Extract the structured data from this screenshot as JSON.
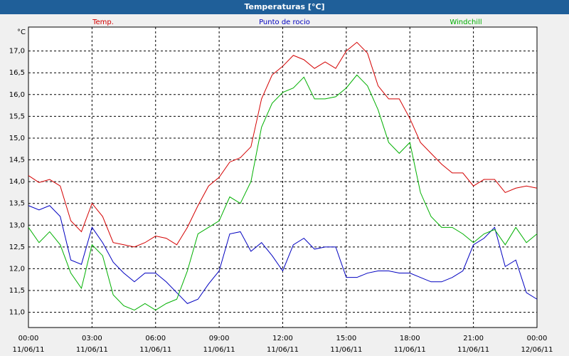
{
  "chart_data": {
    "type": "line",
    "title": "Temperaturas [°C]",
    "y_unit": "°C",
    "x": [
      0,
      0.5,
      1,
      1.5,
      2,
      2.5,
      3,
      3.5,
      4,
      4.5,
      5,
      5.5,
      6,
      6.5,
      7,
      7.5,
      8,
      8.5,
      9,
      9.5,
      10,
      10.5,
      11,
      11.5,
      12,
      12.5,
      13,
      13.5,
      14,
      14.5,
      15,
      15.5,
      16,
      16.5,
      17,
      17.5,
      18,
      18.5,
      19,
      19.5,
      20,
      20.5,
      21,
      21.5,
      22,
      22.5,
      23,
      23.5,
      24
    ],
    "series": [
      {
        "name": "Temp.",
        "color": "#d40000",
        "values": [
          14.14,
          13.98,
          14.05,
          13.9,
          13.1,
          12.85,
          13.5,
          13.2,
          12.6,
          12.55,
          12.5,
          12.6,
          12.75,
          12.7,
          12.55,
          12.95,
          13.45,
          13.9,
          14.1,
          14.45,
          14.55,
          14.8,
          15.9,
          16.45,
          16.65,
          16.9,
          16.8,
          16.6,
          16.75,
          16.6,
          17.0,
          17.2,
          16.95,
          16.2,
          15.9,
          15.9,
          15.45,
          14.9,
          14.65,
          14.4,
          14.2,
          14.2,
          13.9,
          14.05,
          14.05,
          13.75,
          13.85,
          13.9,
          13.85
        ]
      },
      {
        "name": "Punto de rocio",
        "color": "#0000c0",
        "values": [
          13.45,
          13.35,
          13.45,
          13.2,
          12.2,
          12.1,
          12.95,
          12.6,
          12.15,
          11.9,
          11.7,
          11.9,
          11.9,
          11.7,
          11.45,
          11.2,
          11.3,
          11.65,
          11.95,
          12.8,
          12.85,
          12.4,
          12.6,
          12.3,
          11.95,
          12.55,
          12.7,
          12.45,
          12.5,
          12.5,
          11.8,
          11.8,
          11.9,
          11.95,
          11.95,
          11.9,
          11.9,
          11.8,
          11.7,
          11.7,
          11.8,
          11.95,
          12.55,
          12.7,
          12.95,
          12.05,
          12.2,
          11.45,
          11.3
        ]
      },
      {
        "name": "Windchill",
        "color": "#00b000",
        "values": [
          12.95,
          12.6,
          12.85,
          12.55,
          11.9,
          11.55,
          12.55,
          12.3,
          11.4,
          11.15,
          11.05,
          11.2,
          11.05,
          11.2,
          11.3,
          11.95,
          12.8,
          12.95,
          13.1,
          13.65,
          13.5,
          14.0,
          15.25,
          15.8,
          16.05,
          16.15,
          16.4,
          15.9,
          15.9,
          15.95,
          16.15,
          16.45,
          16.2,
          15.65,
          14.9,
          14.65,
          14.9,
          13.75,
          13.2,
          12.95,
          12.95,
          12.8,
          12.6,
          12.8,
          12.9,
          12.55,
          12.95,
          12.6,
          12.8
        ]
      }
    ],
    "xlim": [
      0,
      24
    ],
    "xticks": [
      {
        "value": 0,
        "label": "00:00"
      },
      {
        "value": 3,
        "label": "03:00"
      },
      {
        "value": 6,
        "label": "06:00"
      },
      {
        "value": 9,
        "label": "09:00"
      },
      {
        "value": 12,
        "label": "12:00"
      },
      {
        "value": 15,
        "label": "15:00"
      },
      {
        "value": 18,
        "label": "18:00"
      },
      {
        "value": 21,
        "label": "21:00"
      },
      {
        "value": 24,
        "label": "00:00"
      }
    ],
    "xtick_dates": [
      "11/06/11",
      "11/06/11",
      "11/06/11",
      "11/06/11",
      "11/06/11",
      "11/06/11",
      "11/06/11",
      "11/06/11",
      "12/06/11"
    ],
    "ylim": [
      10.65,
      17.55
    ],
    "yticks": [
      {
        "value": 11,
        "label": "11,0"
      },
      {
        "value": 11.5,
        "label": "11,5"
      },
      {
        "value": 12,
        "label": "12,0"
      },
      {
        "value": 12.5,
        "label": "12,5"
      },
      {
        "value": 13,
        "label": "13,0"
      },
      {
        "value": 13.5,
        "label": "13,5"
      },
      {
        "value": 14,
        "label": "14,0"
      },
      {
        "value": 14.5,
        "label": "14,5"
      },
      {
        "value": 15,
        "label": "15,0"
      },
      {
        "value": 15.5,
        "label": "15,5"
      },
      {
        "value": 16,
        "label": "16,0"
      },
      {
        "value": 16.5,
        "label": "16,5"
      },
      {
        "value": 17,
        "label": "17,0"
      }
    ],
    "grid": true
  }
}
